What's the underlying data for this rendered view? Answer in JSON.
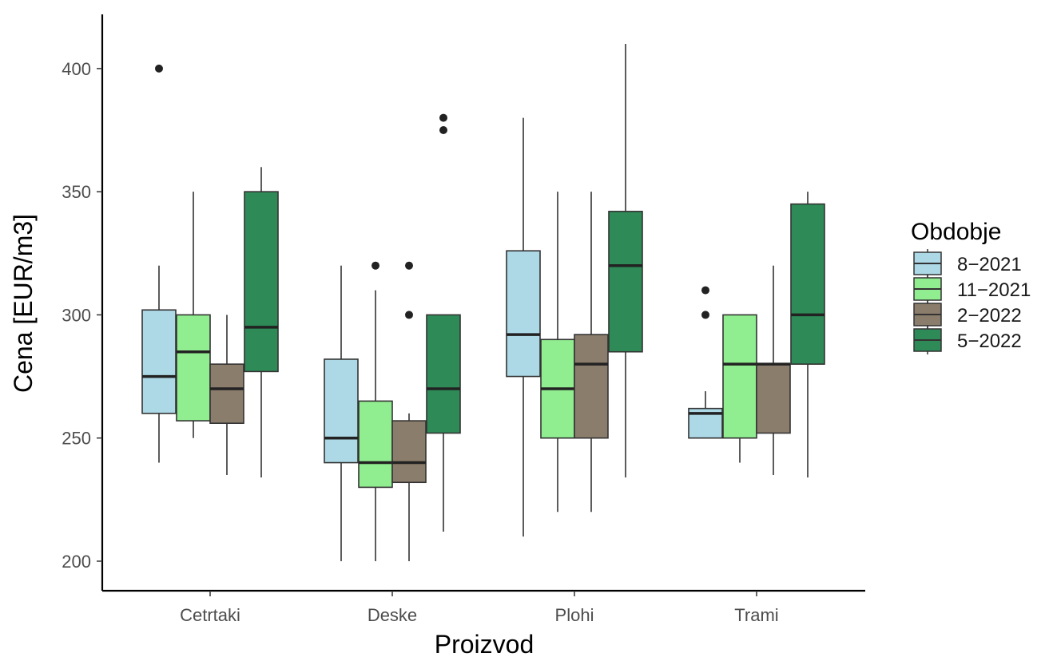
{
  "chart_data": {
    "type": "boxplot",
    "title": "",
    "xlabel": "Proizvod",
    "ylabel": "Cena [EUR/m3]",
    "ylim": [
      188,
      422
    ],
    "yticks": [
      200,
      250,
      300,
      350,
      400
    ],
    "grid": false,
    "legend": {
      "title": "Obdobje",
      "position": "right"
    },
    "categories": [
      "Cetrtaki",
      "Deske",
      "Plohi",
      "Trami"
    ],
    "series": [
      {
        "name": "8−2021",
        "color": "#add8e6",
        "boxes": [
          {
            "min": 240,
            "q1": 260,
            "median": 275,
            "q3": 302,
            "max": 320,
            "outliers": [
              400
            ]
          },
          {
            "min": 200,
            "q1": 240,
            "median": 250,
            "q3": 282,
            "max": 320,
            "outliers": []
          },
          {
            "min": 210,
            "q1": 275,
            "median": 292,
            "q3": 326,
            "max": 380,
            "outliers": []
          },
          {
            "min": 250,
            "q1": 250,
            "median": 260,
            "q3": 262,
            "max": 269,
            "outliers": [
              300,
              310
            ]
          }
        ]
      },
      {
        "name": "11−2021",
        "color": "#90ee90",
        "boxes": [
          {
            "min": 250,
            "q1": 257,
            "median": 285,
            "q3": 300,
            "max": 350,
            "outliers": []
          },
          {
            "min": 200,
            "q1": 230,
            "median": 240,
            "q3": 265,
            "max": 310,
            "outliers": [
              320
            ]
          },
          {
            "min": 220,
            "q1": 250,
            "median": 270,
            "q3": 290,
            "max": 350,
            "outliers": []
          },
          {
            "min": 240,
            "q1": 250,
            "median": 280,
            "q3": 300,
            "max": 300,
            "outliers": []
          }
        ]
      },
      {
        "name": "2−2022",
        "color": "#8b7d6b",
        "boxes": [
          {
            "min": 235,
            "q1": 256,
            "median": 270,
            "q3": 280,
            "max": 300,
            "outliers": []
          },
          {
            "min": 200,
            "q1": 232,
            "median": 240,
            "q3": 257,
            "max": 260,
            "outliers": [
              300,
              320
            ]
          },
          {
            "min": 220,
            "q1": 250,
            "median": 280,
            "q3": 292,
            "max": 350,
            "outliers": []
          },
          {
            "min": 235,
            "q1": 252,
            "median": 280,
            "q3": 280,
            "max": 320,
            "outliers": []
          }
        ]
      },
      {
        "name": "5−2022",
        "color": "#2e8b57",
        "boxes": [
          {
            "min": 234,
            "q1": 277,
            "median": 295,
            "q3": 350,
            "max": 360,
            "outliers": []
          },
          {
            "min": 212,
            "q1": 252,
            "median": 270,
            "q3": 300,
            "max": 300,
            "outliers": [
              375,
              380
            ]
          },
          {
            "min": 234,
            "q1": 285,
            "median": 320,
            "q3": 342,
            "max": 410,
            "outliers": []
          },
          {
            "min": 234,
            "q1": 280,
            "median": 300,
            "q3": 345,
            "max": 350,
            "outliers": []
          }
        ]
      }
    ]
  }
}
